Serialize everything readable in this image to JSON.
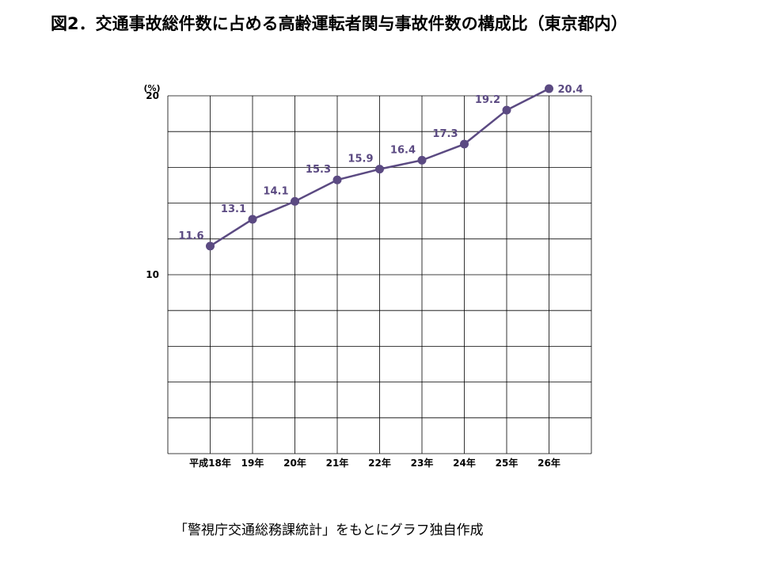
{
  "title": "図2．交通事故総件数に占める高齢運転者関与事故件数の構成比（東京都内）",
  "source": "「警視庁交通総務課統計」をもとにグラフ独自作成",
  "chart_data": {
    "type": "line",
    "title": "図2．交通事故総件数に占める高齢運転者関与事故件数の構成比（東京都内）",
    "y_unit": "(%)",
    "categories": [
      "平成18年",
      "19年",
      "20年",
      "21年",
      "22年",
      "23年",
      "24年",
      "25年",
      "26年"
    ],
    "series": [
      {
        "values": [
          11.6,
          13.1,
          14.1,
          15.3,
          15.9,
          16.4,
          17.3,
          19.2,
          20.4
        ]
      }
    ],
    "data_labels": [
      "11.6",
      "13.1",
      "14.1",
      "15.3",
      "15.9",
      "16.4",
      "17.3",
      "19.2",
      "20.4"
    ],
    "ylim": [
      0,
      20
    ],
    "yticks": [
      {
        "value": 10,
        "label": "10"
      },
      {
        "value": 20,
        "label": "20"
      }
    ],
    "grid": true,
    "line_color": "#5b4a82"
  }
}
